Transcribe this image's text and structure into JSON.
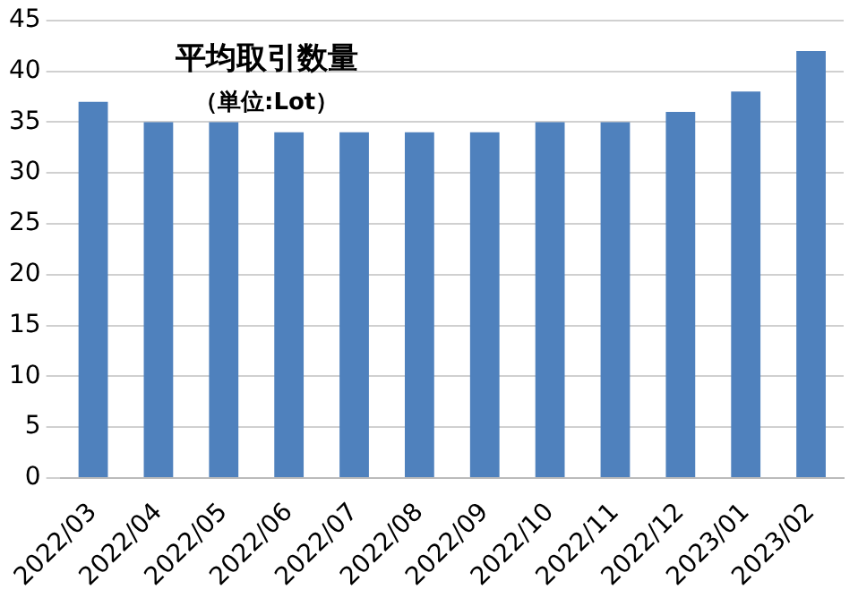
{
  "chart_data": {
    "type": "bar",
    "title": "平均取引数量",
    "subtitle": "（単位:Lot）",
    "categories": [
      "2022/03",
      "2022/04",
      "2022/05",
      "2022/06",
      "2022/07",
      "2022/08",
      "2022/09",
      "2022/10",
      "2022/11",
      "2022/12",
      "2023/01",
      "2023/02"
    ],
    "values": [
      37,
      35,
      35,
      34,
      34,
      34,
      34,
      35,
      35,
      36,
      38,
      42
    ],
    "color": "#4f81bd",
    "ylim": [
      0,
      45
    ],
    "yticks": [
      0,
      5,
      10,
      15,
      20,
      25,
      30,
      35,
      40,
      45
    ],
    "grid": "y",
    "legend": false
  }
}
